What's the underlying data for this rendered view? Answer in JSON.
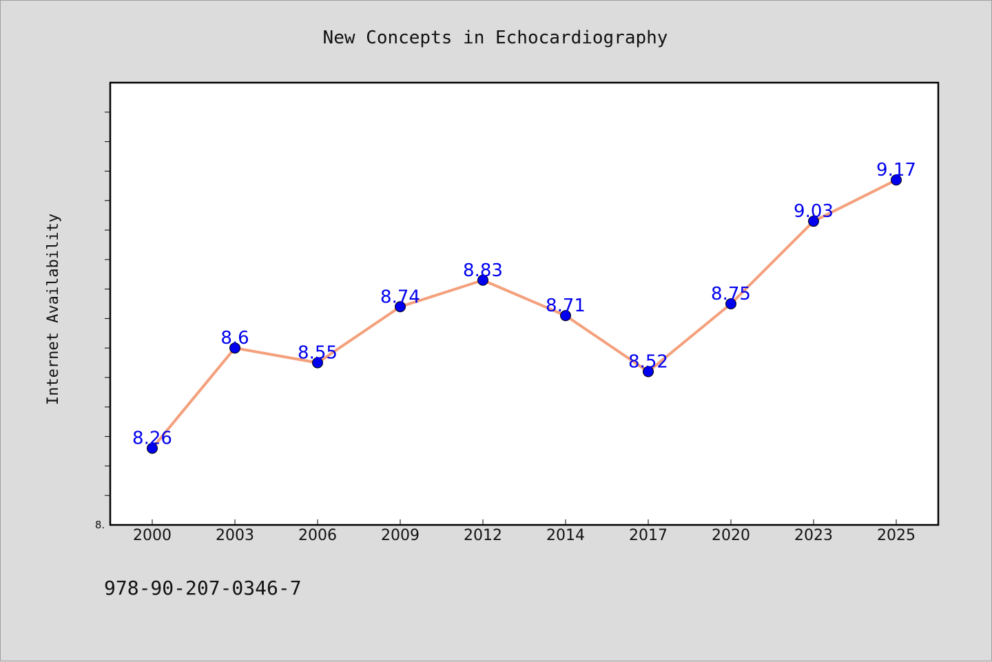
{
  "chart_data": {
    "type": "line",
    "title": "New Concepts in Echocardiography",
    "xlabel": "",
    "ylabel": "Internet Availability",
    "categories": [
      "2000",
      "2003",
      "2006",
      "2009",
      "2012",
      "2014",
      "2017",
      "2020",
      "2023",
      "2025"
    ],
    "series": [
      {
        "values": [
          8.26,
          8.6,
          8.55,
          8.74,
          8.83,
          8.71,
          8.52,
          8.75,
          9.03,
          9.17
        ]
      }
    ],
    "data_labels": [
      "8.26",
      "8.6",
      "8.55",
      "8.74",
      "8.83",
      "8.71",
      "8.52",
      "8.75",
      "9.03",
      "9.17"
    ],
    "ylim": [
      8.0,
      9.5
    ],
    "ytick_label": "8.",
    "grid": false,
    "legend": "none"
  },
  "footer": {
    "isbn": "978-90-207-0346-7"
  },
  "colors": {
    "line": "#f4a07c",
    "marker": "#0000ee",
    "label": "#0000ee",
    "plot_bg": "#ffffff",
    "figure_bg": "#dcdcdc"
  }
}
